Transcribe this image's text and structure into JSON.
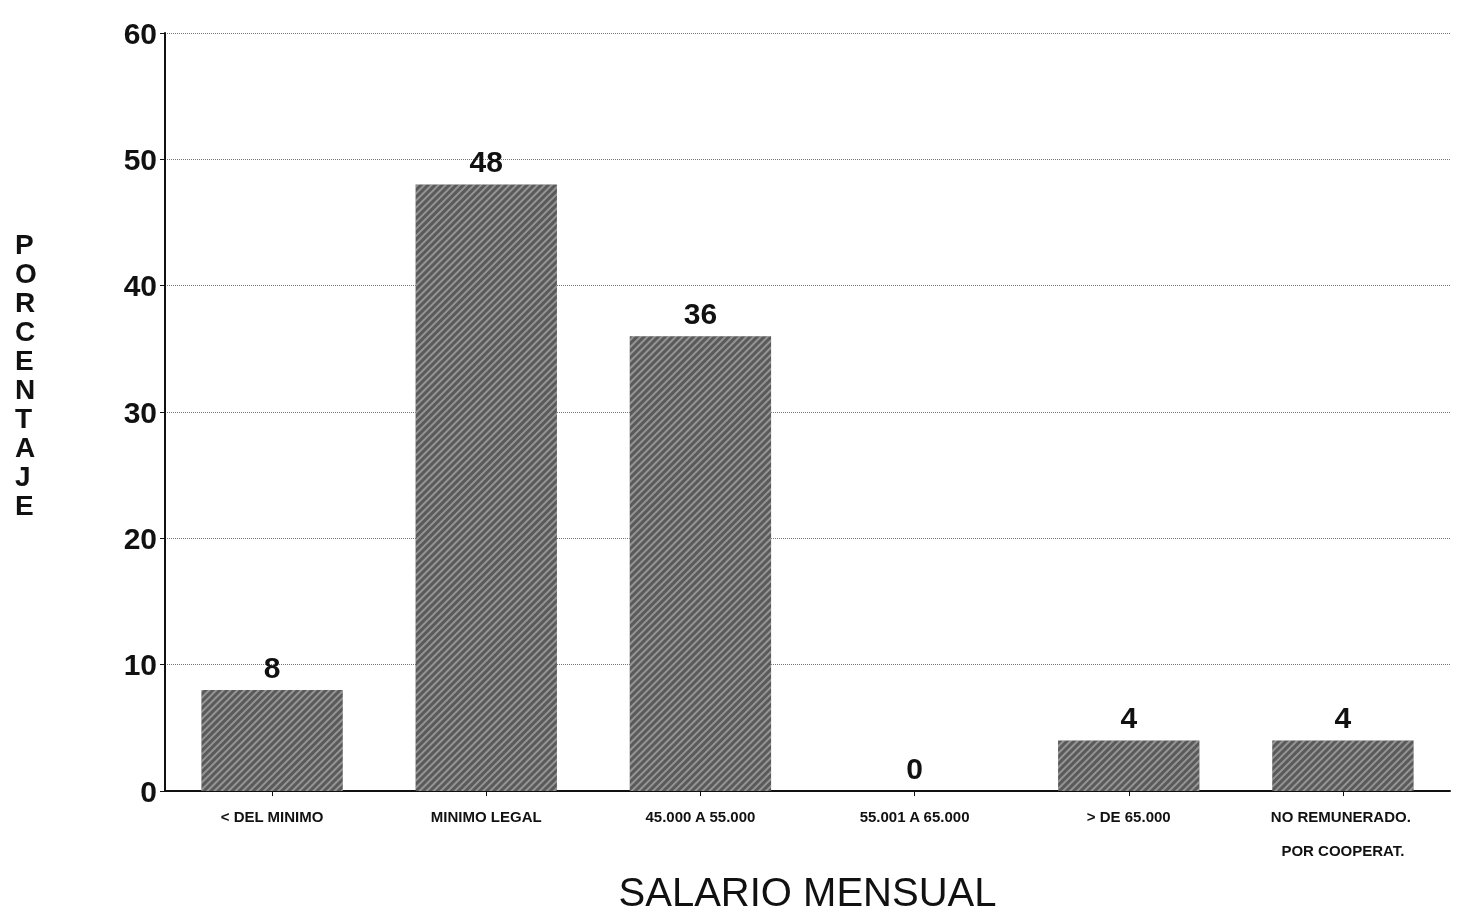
{
  "chart_data": {
    "type": "bar",
    "xlabel": "SALARIO MENSUAL",
    "ylabel": "PORCENTAJE",
    "categories": [
      "< DEL MINIMO",
      "MINIMO LEGAL",
      "45.000 A 55.000",
      "55.001 A 65.000",
      "> DE 65.000",
      "NO REMUNERADO. POR COOPERAT."
    ],
    "values": [
      8,
      48,
      36,
      0,
      4,
      4
    ],
    "color": "#5a5a5a",
    "ylim": [
      0,
      60
    ],
    "yticks": [
      0,
      10,
      20,
      30,
      40,
      50,
      60
    ],
    "grid": "y",
    "data_labels": true
  }
}
